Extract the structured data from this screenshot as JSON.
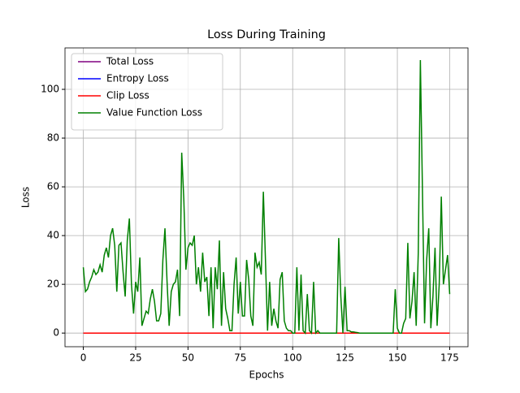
{
  "chart_data": {
    "type": "line",
    "title": "Loss During Training",
    "x_label": "Epochs",
    "y_label": "Loss",
    "x": [
      0,
      1,
      2,
      3,
      4,
      5,
      6,
      7,
      8,
      9,
      10,
      11,
      12,
      13,
      14,
      15,
      16,
      17,
      18,
      19,
      20,
      21,
      22,
      23,
      24,
      25,
      26,
      27,
      28,
      29,
      30,
      31,
      32,
      33,
      34,
      35,
      36,
      37,
      38,
      39,
      40,
      41,
      42,
      43,
      44,
      45,
      46,
      47,
      48,
      49,
      50,
      51,
      52,
      53,
      54,
      55,
      56,
      57,
      58,
      59,
      60,
      61,
      62,
      63,
      64,
      65,
      66,
      67,
      68,
      69,
      70,
      71,
      72,
      73,
      74,
      75,
      76,
      77,
      78,
      79,
      80,
      81,
      82,
      83,
      84,
      85,
      86,
      87,
      88,
      89,
      90,
      91,
      92,
      93,
      94,
      95,
      96,
      97,
      98,
      99,
      100,
      101,
      102,
      103,
      104,
      105,
      106,
      107,
      108,
      109,
      110,
      111,
      112,
      113,
      114,
      115,
      116,
      117,
      118,
      119,
      120,
      121,
      122,
      123,
      124,
      125,
      126,
      127,
      128,
      129,
      130,
      131,
      132,
      133,
      134,
      135,
      136,
      137,
      138,
      139,
      140,
      141,
      142,
      143,
      144,
      145,
      146,
      147,
      148,
      149,
      150,
      151,
      152,
      153,
      154,
      155,
      156,
      157,
      158,
      159,
      160,
      161,
      162,
      163,
      164,
      165,
      166,
      167,
      168,
      169,
      170,
      171,
      172,
      173,
      174,
      175
    ],
    "series": [
      {
        "name": "Total Loss",
        "color": "#800080",
        "values": [
          0,
          0,
          0,
          0,
          0,
          0,
          0,
          0,
          0,
          0,
          0,
          0,
          0,
          0,
          0,
          0,
          0,
          0,
          0,
          0,
          0,
          0,
          0,
          0,
          0,
          0,
          0,
          0,
          0,
          0,
          0,
          0,
          0,
          0,
          0,
          0,
          0,
          0,
          0,
          0,
          0,
          0,
          0,
          0,
          0,
          0,
          0,
          0,
          0,
          0,
          0,
          0,
          0,
          0,
          0,
          0,
          0,
          0,
          0,
          0,
          0,
          0,
          0,
          0,
          0,
          0,
          0,
          0,
          0,
          0,
          0,
          0,
          0,
          0,
          0,
          0,
          0,
          0,
          0,
          0,
          0,
          0,
          0,
          0,
          0,
          0,
          0,
          0,
          0,
          0,
          0,
          0,
          0,
          0,
          0,
          0,
          0,
          0,
          0,
          0,
          0,
          0,
          0,
          0,
          0,
          0,
          0,
          0,
          0,
          0,
          0,
          0,
          0,
          0,
          0,
          0,
          0,
          0,
          0,
          0,
          0,
          0,
          0,
          0,
          0,
          0,
          0,
          0,
          0,
          0,
          0,
          0,
          0,
          0,
          0,
          0,
          0,
          0,
          0,
          0,
          0,
          0,
          0,
          0,
          0,
          0,
          0,
          0,
          0,
          0,
          0,
          0,
          0,
          0,
          0,
          0,
          0,
          0,
          0,
          0,
          0,
          0,
          0,
          0,
          0,
          0,
          0,
          0,
          0,
          0,
          0,
          0,
          0,
          0,
          0,
          0
        ]
      },
      {
        "name": "Entropy Loss",
        "color": "#0000ff",
        "values": [
          0,
          0,
          0,
          0,
          0,
          0,
          0,
          0,
          0,
          0,
          0,
          0,
          0,
          0,
          0,
          0,
          0,
          0,
          0,
          0,
          0,
          0,
          0,
          0,
          0,
          0,
          0,
          0,
          0,
          0,
          0,
          0,
          0,
          0,
          0,
          0,
          0,
          0,
          0,
          0,
          0,
          0,
          0,
          0,
          0,
          0,
          0,
          0,
          0,
          0,
          0,
          0,
          0,
          0,
          0,
          0,
          0,
          0,
          0,
          0,
          0,
          0,
          0,
          0,
          0,
          0,
          0,
          0,
          0,
          0,
          0,
          0,
          0,
          0,
          0,
          0,
          0,
          0,
          0,
          0,
          0,
          0,
          0,
          0,
          0,
          0,
          0,
          0,
          0,
          0,
          0,
          0,
          0,
          0,
          0,
          0,
          0,
          0,
          0,
          0,
          0,
          0,
          0,
          0,
          0,
          0,
          0,
          0,
          0,
          0,
          0,
          0,
          0,
          0,
          0,
          0,
          0,
          0,
          0,
          0,
          0,
          0,
          0,
          0,
          0,
          0,
          0,
          0,
          0,
          0,
          0,
          0,
          0,
          0,
          0,
          0,
          0,
          0,
          0,
          0,
          0,
          0,
          0,
          0,
          0,
          0,
          0,
          0,
          0,
          0,
          0,
          0,
          0,
          0,
          0,
          0,
          0,
          0,
          0,
          0,
          0,
          0,
          0,
          0,
          0,
          0,
          0,
          0,
          0,
          0,
          0,
          0,
          0,
          0,
          0,
          0
        ]
      },
      {
        "name": "Clip Loss",
        "color": "#ff0000",
        "values": [
          0,
          0,
          0,
          0,
          0,
          0,
          0,
          0,
          0,
          0,
          0,
          0,
          0,
          0,
          0,
          0,
          0,
          0,
          0,
          0,
          0,
          0,
          0,
          0,
          0,
          0,
          0,
          0,
          0,
          0,
          0,
          0,
          0,
          0,
          0,
          0,
          0,
          0,
          0,
          0,
          0,
          0,
          0,
          0,
          0,
          0,
          0,
          0,
          0,
          0,
          0,
          0,
          0,
          0,
          0,
          0,
          0,
          0,
          0,
          0,
          0,
          0,
          0,
          0,
          0,
          0,
          0,
          0,
          0,
          0,
          0,
          0,
          0,
          0,
          0,
          0,
          0,
          0,
          0,
          0,
          0,
          0,
          0,
          0,
          0,
          0,
          0,
          0,
          0,
          0,
          0,
          0,
          0,
          0,
          0,
          0,
          0,
          0,
          0,
          0,
          0,
          0,
          0,
          0,
          0,
          0,
          0,
          0,
          0,
          0,
          0,
          0,
          0,
          0,
          0,
          0,
          0,
          0,
          0,
          0,
          0,
          0,
          0,
          0,
          0,
          0,
          0,
          0,
          0,
          0,
          0,
          0,
          0,
          0,
          0,
          0,
          0,
          0,
          0,
          0,
          0,
          0,
          0,
          0,
          0,
          0,
          0,
          0,
          0,
          0,
          0,
          0,
          0,
          0,
          0,
          0,
          0,
          0,
          0,
          0,
          0,
          0,
          0,
          0,
          0,
          0,
          0,
          0,
          0,
          0,
          0,
          0,
          0,
          0,
          0,
          0
        ]
      },
      {
        "name": "Value Function Loss",
        "color": "#008000",
        "values": [
          27,
          17,
          18,
          21,
          23,
          26,
          24,
          25,
          28,
          25,
          32,
          35,
          31,
          40,
          43,
          36,
          17,
          36,
          37,
          25,
          15,
          38,
          47,
          20,
          8,
          21,
          17,
          31,
          3,
          6,
          9,
          8,
          14,
          18,
          13,
          5,
          5,
          8,
          30,
          43,
          21,
          3,
          17,
          20,
          21,
          26,
          7,
          74,
          55,
          26,
          35,
          37,
          36,
          40,
          20,
          27,
          17,
          33,
          21,
          23,
          7,
          27,
          2,
          27,
          18,
          38,
          3,
          25,
          10,
          6,
          1,
          1,
          20,
          31,
          8,
          21,
          7,
          7,
          30,
          22,
          7,
          3,
          33,
          27,
          29,
          24,
          58,
          30,
          1,
          21,
          3,
          10,
          5,
          2,
          22,
          25,
          5,
          2,
          1,
          1,
          0,
          0,
          27,
          1,
          24,
          1,
          0,
          16,
          1,
          0,
          21,
          0,
          1,
          0,
          0,
          0,
          0,
          0,
          0,
          0,
          0,
          0,
          39,
          15,
          0,
          19,
          1,
          1,
          0.5,
          0.5,
          0.3,
          0.2,
          0,
          0,
          0,
          0,
          0,
          0,
          0,
          0,
          0,
          0,
          0,
          0,
          0,
          0,
          0,
          0,
          0,
          18,
          2,
          0,
          0,
          4,
          6,
          37,
          6,
          13,
          25,
          3,
          33,
          112,
          58,
          4,
          30,
          43,
          2,
          15,
          35,
          3,
          20,
          56,
          20,
          26,
          32,
          16
        ]
      }
    ],
    "xlim": [
      -8.75,
      183.75
    ],
    "ylim": [
      -5.6,
      117
    ],
    "xticks": [
      0,
      25,
      50,
      75,
      100,
      125,
      150,
      175
    ],
    "yticks": [
      0,
      20,
      40,
      60,
      80,
      100
    ],
    "grid": true,
    "legend": "upper-left"
  }
}
